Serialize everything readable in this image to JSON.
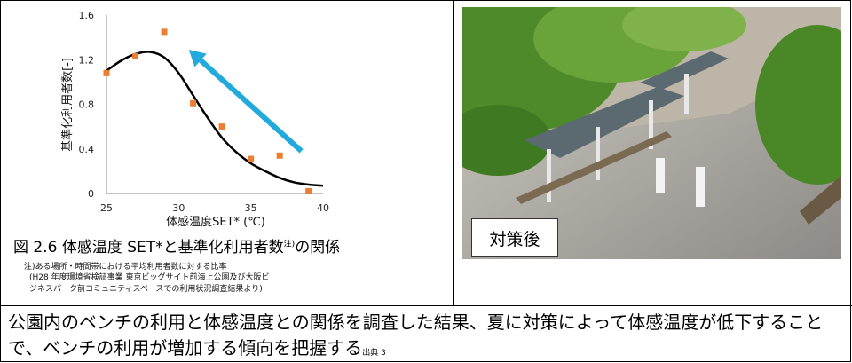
{
  "chart_data": {
    "type": "scatter",
    "xlabel": "体感温度SET* (℃)",
    "ylabel": "基準化利用者数[-]",
    "xlim": [
      25,
      40
    ],
    "ylim": [
      0,
      1.6
    ],
    "x_ticks": [
      "25",
      "30",
      "35",
      "40"
    ],
    "y_ticks": [
      "0",
      "0.4",
      "0.8",
      "1.2",
      "1.6"
    ],
    "series": [
      {
        "type": "scatter",
        "color": "#ed7d31",
        "points": [
          {
            "x": 25,
            "y": 1.08
          },
          {
            "x": 27,
            "y": 1.23
          },
          {
            "x": 29,
            "y": 1.45
          },
          {
            "x": 31,
            "y": 0.81
          },
          {
            "x": 33,
            "y": 0.6
          },
          {
            "x": 35,
            "y": 0.31
          },
          {
            "x": 37,
            "y": 0.34
          },
          {
            "x": 39,
            "y": 0.02
          }
        ]
      },
      {
        "type": "line",
        "color": "#000000",
        "points": [
          {
            "x": 25,
            "y": 1.1
          },
          {
            "x": 26,
            "y": 1.19
          },
          {
            "x": 27,
            "y": 1.25
          },
          {
            "x": 28,
            "y": 1.27
          },
          {
            "x": 29,
            "y": 1.22
          },
          {
            "x": 30,
            "y": 1.08
          },
          {
            "x": 31,
            "y": 0.88
          },
          {
            "x": 32,
            "y": 0.68
          },
          {
            "x": 33,
            "y": 0.5
          },
          {
            "x": 34,
            "y": 0.37
          },
          {
            "x": 35,
            "y": 0.27
          },
          {
            "x": 36,
            "y": 0.2
          },
          {
            "x": 37,
            "y": 0.14
          },
          {
            "x": 38,
            "y": 0.1
          },
          {
            "x": 39,
            "y": 0.08
          },
          {
            "x": 40,
            "y": 0.07
          }
        ]
      }
    ],
    "annotation": {
      "type": "arrow",
      "color": "#22aadd",
      "from": {
        "x": 38.5,
        "y": 0.38
      },
      "to": {
        "x": 30.7,
        "y": 1.29
      }
    }
  },
  "caption": {
    "text": "図 2.6 体感温度 SET*と基準化利用者数",
    "sup": "注)",
    "suffix": "の関係"
  },
  "notes": [
    "注)ある場所・時間帯における平均利用者数に対する比率",
    "(H28 年度環境省検証事業 東京ビッグサイト前海上公園及び大阪ビ",
    "ジネスパーク前コミュニティスペースでの利用状況調査結果より)"
  ],
  "photo_label": "対策後",
  "summary": {
    "text": "公園内のベンチの利用と体感温度との関係を調査した結果、夏に対策によって体感温度が低下することで、ベンチの利用が増加する傾向を把握する",
    "source": "出典 3"
  },
  "colors": {
    "marker": "#ed7d31",
    "curve": "#000000",
    "arrow": "#22aadd"
  }
}
